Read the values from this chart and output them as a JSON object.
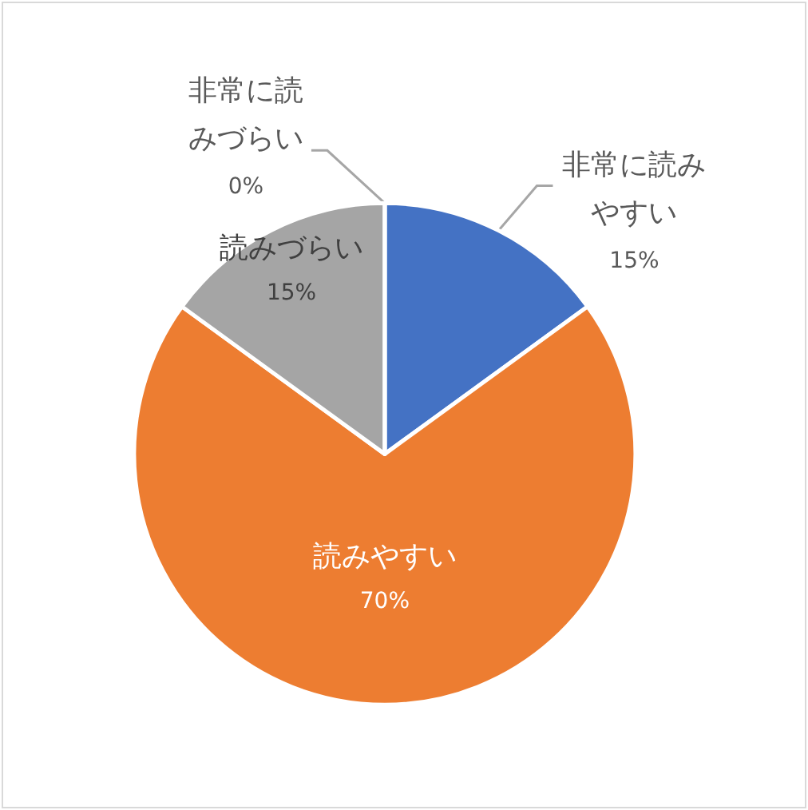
{
  "chart_data": {
    "type": "pie",
    "categories": [
      "非常に読みやすい",
      "読みやすい",
      "読みづらい",
      "非常に読みづらい"
    ],
    "values": [
      15,
      70,
      15,
      0
    ],
    "colors": [
      "#4472c4",
      "#ed7d31",
      "#a5a5a5",
      "#ffc000"
    ],
    "value_labels": [
      "15%",
      "70%",
      "15%",
      "0%"
    ]
  }
}
